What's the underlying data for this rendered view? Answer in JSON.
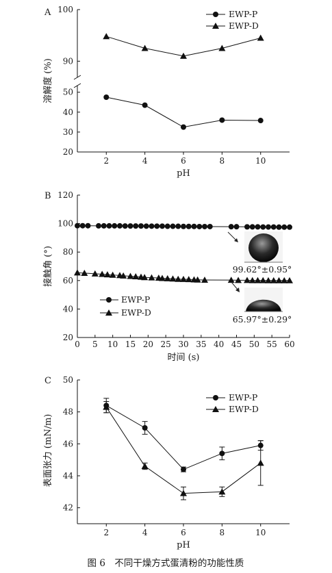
{
  "caption": "图 6　不同干燥方式蛋清粉的功能性质",
  "chart_data": [
    {
      "panel": "A",
      "type": "line",
      "xlabel": "pH",
      "ylabel": "溶解度 (%)",
      "x": [
        2,
        4,
        6,
        8,
        10
      ],
      "xlim": [
        0.5,
        11.5
      ],
      "x_ticks": [
        "2",
        "4",
        "6",
        "8",
        "10"
      ],
      "broken_y_axis": true,
      "ylim_lower": [
        20,
        53
      ],
      "ylim_upper": [
        87,
        100
      ],
      "y_ticks_lower": [
        "20",
        "30",
        "40",
        "50"
      ],
      "y_ticks_upper": [
        "90",
        "100"
      ],
      "series": [
        {
          "name": "EWP-P",
          "marker": "circle",
          "values": [
            47.5,
            43.5,
            32.5,
            36.0,
            35.8
          ]
        },
        {
          "name": "EWP-D",
          "marker": "triangle",
          "values": [
            94.8,
            92.5,
            91.0,
            92.5,
            94.5
          ]
        }
      ],
      "legend_position": "top-right"
    },
    {
      "panel": "B",
      "type": "line",
      "xlabel": "时间 (s)",
      "ylabel": "接触角 (°)",
      "xlim": [
        0,
        60
      ],
      "ylim": [
        20,
        120
      ],
      "x_ticks": [
        "0",
        "5",
        "10",
        "15",
        "20",
        "25",
        "30",
        "35",
        "40",
        "45",
        "50",
        "55",
        "60"
      ],
      "y_ticks": [
        "20",
        "40",
        "60",
        "80",
        "100",
        "120"
      ],
      "series": [
        {
          "name": "EWP-P",
          "marker": "circle",
          "x": [
            0,
            1.5,
            3,
            6,
            7.5,
            9,
            10.5,
            12,
            13.5,
            15,
            16.5,
            18,
            19.5,
            21,
            22.5,
            24,
            25.5,
            27,
            28.5,
            30,
            31.5,
            33,
            34.5,
            36,
            37.5,
            43.5,
            45,
            48,
            49.5,
            51,
            52.5,
            54,
            55.5,
            57,
            58.5,
            60
          ],
          "values": [
            98.5,
            98.5,
            98.5,
            98.4,
            98.4,
            98.4,
            98.4,
            98.4,
            98.3,
            98.3,
            98.3,
            98.3,
            98.2,
            98.2,
            98.2,
            98.2,
            98.1,
            98.1,
            98.1,
            98.0,
            98.0,
            98.0,
            97.9,
            97.9,
            97.9,
            97.8,
            97.8,
            97.7,
            97.7,
            97.7,
            97.6,
            97.6,
            97.6,
            97.5,
            97.5,
            97.5
          ]
        },
        {
          "name": "EWP-D",
          "marker": "triangle",
          "x": [
            0,
            2,
            5,
            7,
            8.5,
            10,
            12,
            13,
            15,
            16.5,
            18,
            19,
            21,
            23,
            24,
            25.5,
            27,
            28.5,
            30,
            31.5,
            33,
            34,
            36,
            43.5,
            45.5,
            48,
            49.5,
            51,
            52.5,
            54,
            55.5,
            57,
            58.5,
            60
          ],
          "values": [
            65.5,
            65.2,
            64.8,
            64.5,
            64.2,
            63.9,
            63.6,
            63.3,
            63.0,
            62.8,
            62.5,
            62.2,
            62.0,
            61.8,
            61.6,
            61.4,
            61.2,
            61.0,
            60.9,
            60.8,
            60.6,
            60.5,
            60.4,
            60.3,
            60.2,
            60.2,
            60.1,
            60.1,
            60.1,
            60.0,
            60.0,
            60.0,
            60.0,
            60.0
          ]
        }
      ],
      "gap_x": [
        38,
        43
      ],
      "annotations": [
        "99.62°±0.95°",
        "65.97°±0.29°"
      ],
      "legend_position": "bottom-left"
    },
    {
      "panel": "C",
      "type": "line",
      "xlabel": "pH",
      "ylabel": "表面张力 (mN/m)",
      "x": [
        2,
        4,
        6,
        8,
        10
      ],
      "xlim": [
        0.5,
        11.5
      ],
      "ylim": [
        41,
        50
      ],
      "x_ticks": [
        "2",
        "4",
        "6",
        "8",
        "10"
      ],
      "y_ticks": [
        "42",
        "44",
        "46",
        "48",
        "50"
      ],
      "series": [
        {
          "name": "EWP-P",
          "marker": "circle",
          "values": [
            48.4,
            47.0,
            44.4,
            45.4,
            45.9
          ],
          "errors": [
            0.45,
            0.4,
            0.15,
            0.4,
            0.3
          ]
        },
        {
          "name": "EWP-D",
          "marker": "triangle",
          "values": [
            48.3,
            44.6,
            42.9,
            43.0,
            44.8
          ],
          "errors": [
            0.35,
            0.2,
            0.4,
            0.3,
            1.4
          ]
        }
      ],
      "legend_position": "top-right"
    }
  ]
}
